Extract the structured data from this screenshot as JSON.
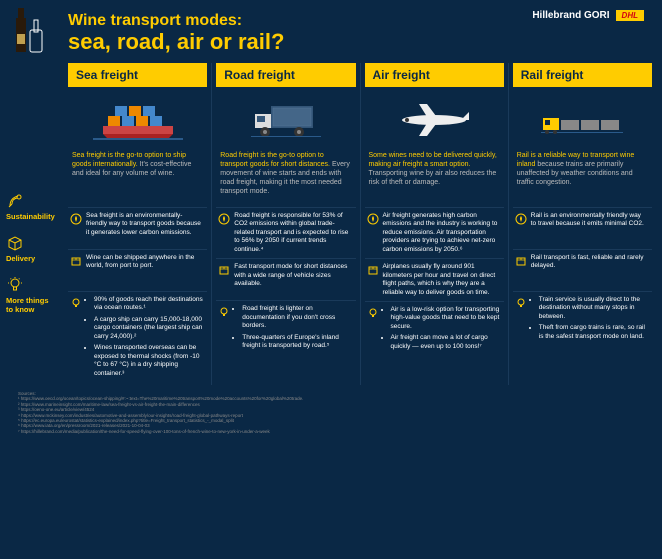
{
  "colors": {
    "bg": "#0a2845",
    "accent": "#ffcc00",
    "text": "#ffffff",
    "muted": "#bbbbbb",
    "divider": "#1a3a5a",
    "dhl_red": "#d40511"
  },
  "brand": {
    "name": "Hillebrand GORI",
    "dhl": "DHL"
  },
  "title": {
    "pre": "Wine transport modes:",
    "main": "sea, road, air or rail?"
  },
  "sidebar": [
    {
      "label": "Sustainability",
      "icon": "leaf"
    },
    {
      "label": "Delivery",
      "icon": "box"
    },
    {
      "label": "More things to know",
      "icon": "bulb"
    }
  ],
  "columns": [
    {
      "head": "Sea freight",
      "icon": "ship",
      "intro_lead": "Sea freight is the go-to option to ship goods internationally.",
      "intro_sub": "It's cost-effective and ideal for any volume of wine.",
      "sustain": "Sea freight is an environmentally-friendly way to transport goods because it generates lower carbon emissions.",
      "delivery": "Wine can be shipped anywhere in the world, from port to port.",
      "more": [
        "90% of goods reach their destinations via ocean routes.¹",
        "A cargo ship can carry 15,000-18,000 cargo containers (the largest ship can carry 24,000).²",
        "Wines transported overseas can be exposed to thermal shocks (from -10 °C to 67 °C) in a dry shipping container.³"
      ]
    },
    {
      "head": "Road freight",
      "icon": "truck",
      "intro_lead": "Road freight is the go-to option to transport goods for short distances.",
      "intro_sub": "Every movement of wine starts and ends with road freight, making it the most needed transport mode.",
      "sustain": "Road freight is responsible for 53% of CO2 emissions within global trade-related transport and is expected to rise to 56% by 2050 if current trends continue.⁴",
      "delivery": "Fast transport mode for short distances with a wide range of vehicle sizes available.",
      "more": [
        "Road freight is lighter on documentation if you don't cross borders.",
        "Three-quarters of Europe's inland freight is transported by road.⁵"
      ]
    },
    {
      "head": "Air freight",
      "icon": "plane",
      "intro_lead": "Some wines need to be delivered quickly, making air freight a smart option.",
      "intro_sub": "Transporting wine by air also reduces the risk of theft or damage.",
      "sustain": "Air freight generates high carbon emissions and the industry is working to reduce emissions. Air transportation providers are trying to achieve net-zero carbon emissions by 2050.⁶",
      "delivery": "Airplanes usually fly around 901 kilometers per hour and travel on direct flight paths, which is why they are a reliable way to deliver goods on time.",
      "more": [
        "Air is a low-risk option for transporting high-value goods that need to be kept secure.",
        "Air freight can move a lot of cargo quickly — even up to 100 tons!⁷"
      ]
    },
    {
      "head": "Rail freight",
      "icon": "train",
      "intro_lead": "Rail is a reliable way to transport wine inland",
      "intro_sub": "because trains are primarily unaffected by weather conditions and traffic congestion.",
      "sustain": "Rail is an environmentally friendly way to travel because it emits minimal CO2.",
      "delivery": "Rail transport is fast, reliable and rarely delayed.",
      "more": [
        "Train service is usually direct to the destination without many stops in between.",
        "Theft from cargo trains is rare, so rail is the safest transport mode on land."
      ]
    }
  ],
  "sources": {
    "label": "Sources:",
    "items": [
      "¹ https://www.oecd.org/ocean/topics/ocean-shipping/#:~:text=The%20maritime%20transport%20mode%20accounts%20for%20global%20trade.",
      "² https://www.marineinsight.com/maritime-law/sea-freight-vs-air-freight-the-main-differences",
      "³ https://oeno-one.eu/article/view/4524",
      "⁴ https://www.mckinsey.com/industries/automotive-and-assembly/our-insights/road-freight-global-pathways-report",
      "⁵ https://ec.europa.eu/eurostat/statistics-explained/index.php?title=Freight_transport_statistics_-_modal_split",
      "⁶ https://www.iata.org/en/pressroom/2021-releases/2021-10-04-03",
      "⁷ https://hillebrand.com/media/publication/the-need-for-speed-flying-over-100-tons-of-french-wine-to-new-york-in-under-a-week"
    ]
  }
}
